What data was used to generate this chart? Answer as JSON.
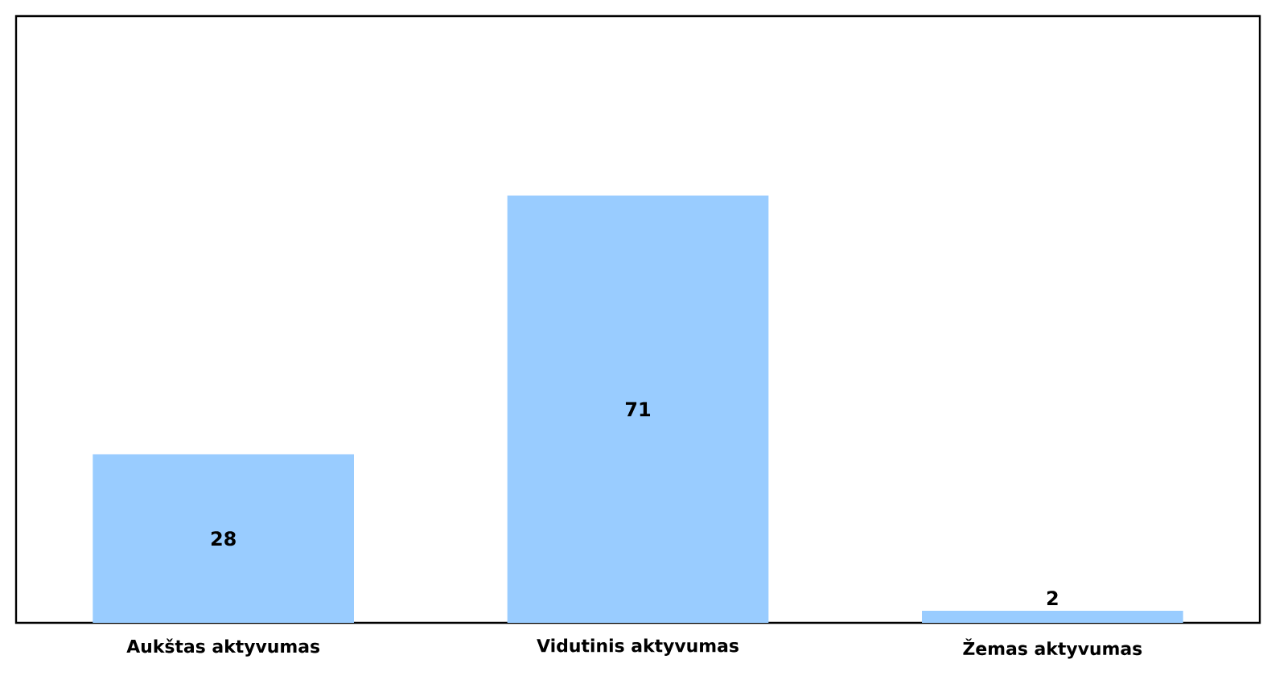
{
  "chart_data": {
    "type": "bar",
    "categories": [
      "Aukštas aktyvumas",
      "Vidutinis aktyvumas",
      "Žemas aktyvumas"
    ],
    "values": [
      28,
      71,
      2
    ],
    "color": "#99ccff",
    "data_labels": true
  }
}
